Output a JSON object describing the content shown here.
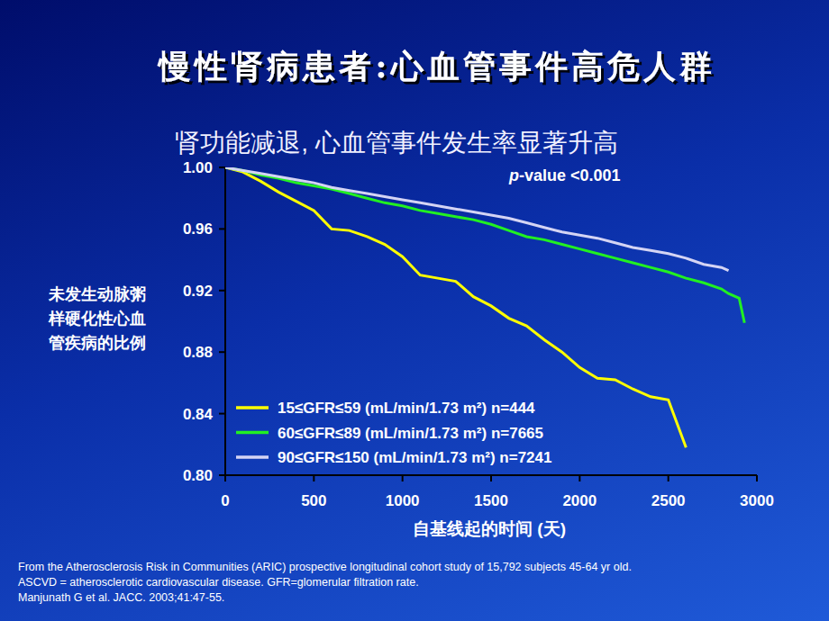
{
  "chart_data": {
    "type": "line",
    "title": "慢性肾病患者:心血管事件高危人群",
    "subtitle": "肾功能减退, 心血管事件发生率显著升高",
    "x_label": "自基线起的时间 (天)",
    "y_label": "未发生动脉粥样硬化性心血管疾病的比例",
    "annotations": [
      "p-value <0.001"
    ],
    "footnotes": [
      "From the Atherosclerosis Risk in Communities (ARIC) prospective longitudinal cohort study of 15,792 subjects 45-64 yr old.",
      "ASCVD = atherosclerotic cardiovascular disease. GFR=glomerular filtration rate.",
      "Manjunath G et al. JACC. 2003;41:47-55."
    ],
    "x": [
      0,
      100,
      200,
      300,
      400,
      500,
      600,
      700,
      800,
      900,
      1000,
      1100,
      1200,
      1300,
      1400,
      1500,
      1600,
      1700,
      1800,
      1900,
      2000,
      2100,
      2200,
      2300,
      2400,
      2500,
      2600,
      2700,
      2800,
      2840,
      2900,
      2930
    ],
    "series": [
      {
        "name": "15≤GFR≤59 (mL/min/1.73 m²) n=444",
        "color": "#ffff00",
        "values": [
          1.0,
          0.997,
          0.991,
          0.984,
          0.978,
          0.972,
          0.96,
          0.959,
          0.955,
          0.95,
          0.942,
          0.93,
          0.928,
          0.926,
          0.916,
          0.91,
          0.902,
          0.897,
          0.888,
          0.88,
          0.87,
          0.863,
          0.862,
          0.856,
          0.851,
          0.849,
          0.818,
          null,
          null,
          null,
          null,
          null
        ]
      },
      {
        "name": "60≤GFR≤89 (mL/min/1.73 m²) n=7665",
        "color": "#22f022",
        "values": [
          1.0,
          0.998,
          0.995,
          0.993,
          0.99,
          0.988,
          0.986,
          0.983,
          0.98,
          0.977,
          0.975,
          0.972,
          0.97,
          0.968,
          0.966,
          0.963,
          0.959,
          0.955,
          0.953,
          0.95,
          0.947,
          0.944,
          0.941,
          0.938,
          0.935,
          0.932,
          0.928,
          0.925,
          0.921,
          0.918,
          0.915,
          0.899
        ]
      },
      {
        "name": "90≤GFR≤150 (mL/min/1.73 m²) n=7241",
        "color": "#d4d4f4",
        "values": [
          1.0,
          0.998,
          0.996,
          0.994,
          0.992,
          0.99,
          0.987,
          0.985,
          0.983,
          0.981,
          0.979,
          0.977,
          0.975,
          0.973,
          0.971,
          0.969,
          0.967,
          0.964,
          0.961,
          0.958,
          0.956,
          0.954,
          0.951,
          0.948,
          0.946,
          0.944,
          0.941,
          0.937,
          0.935,
          0.933,
          null,
          null
        ]
      }
    ],
    "xlim": [
      0,
      3000
    ],
    "xticks": [
      0,
      500,
      1000,
      1500,
      2000,
      2500,
      3000
    ],
    "ylim": [
      0.8,
      1.0
    ],
    "yticks": [
      {
        "value": 0.8,
        "label": "0.80"
      },
      0.84,
      0.88,
      0.92,
      0.96,
      {
        "value": 1.0,
        "label": "1.00"
      }
    ],
    "grid": false,
    "legend": "lower left",
    "line_style": "solid"
  }
}
